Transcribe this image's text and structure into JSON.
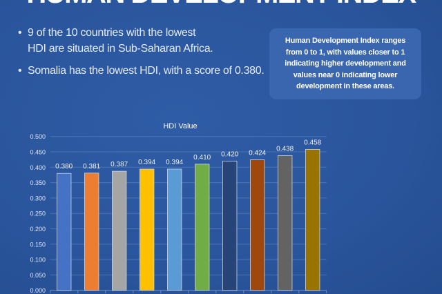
{
  "header": {
    "title": "HUMAN DEVELOPMENT INDEX"
  },
  "bullets": [
    "9 of the 10 countries with the lowest",
    "HDI are situated in Sub-Saharan Africa.",
    "Somalia has the lowest HDI, with a score of 0.380."
  ],
  "info_box": {
    "lines": [
      "Human Development Index ranges",
      "from 0 to 1, with values closer to 1",
      "indicating higher development and",
      "values near 0 indicating lower",
      "development in these areas."
    ]
  },
  "chart_data": {
    "type": "bar",
    "title": "HDI Value",
    "ylim": [
      0,
      0.5
    ],
    "yticks": [
      "0.000",
      "0.050",
      "0.100",
      "0.150",
      "0.200",
      "0.250",
      "0.300",
      "0.350",
      "0.400",
      "0.450",
      "0.500"
    ],
    "grid": true,
    "values": [
      0.38,
      0.381,
      0.387,
      0.394,
      0.394,
      0.41,
      0.42,
      0.424,
      0.438,
      0.458
    ],
    "labels": [
      "0.380",
      "0.381",
      "0.387",
      "0.394",
      "0.394",
      "0.410",
      "0.420",
      "0.424",
      "0.438",
      "0.458"
    ],
    "colors": [
      "#4472c4",
      "#ed7d31",
      "#a5a5a5",
      "#ffc000",
      "#5b9bd5",
      "#70ad47",
      "#264478",
      "#9e480e",
      "#636363",
      "#997300"
    ]
  }
}
